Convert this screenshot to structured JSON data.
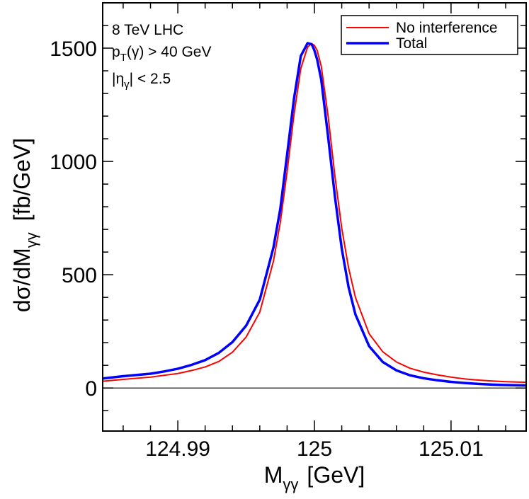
{
  "chart_data": {
    "type": "line",
    "xlabel": {
      "main": "M",
      "sub": "γγ",
      "unit": "[GeV]"
    },
    "ylabel": {
      "prefix": "dσ/dM",
      "sub": "γγ",
      "unit": "[fb/GeV]"
    },
    "xlim": [
      124.9845,
      125.0155
    ],
    "ylim": [
      -190,
      1700
    ],
    "x_ticks": [
      {
        "value": 124.99,
        "label": "124.99"
      },
      {
        "value": 125.0,
        "label": "125"
      },
      {
        "value": 125.01,
        "label": "125.01"
      }
    ],
    "y_ticks": [
      {
        "value": 0,
        "label": "0"
      },
      {
        "value": 500,
        "label": "500"
      },
      {
        "value": 1000,
        "label": "1000"
      },
      {
        "value": 1500,
        "label": "1500"
      }
    ],
    "zero_line": true,
    "annotations": [
      {
        "kind": "plain",
        "text": "8 TeV LHC"
      },
      {
        "kind": "pt",
        "main": "p",
        "sub": "T",
        "rest": "(γ) > 40 GeV"
      },
      {
        "kind": "eta",
        "main": "|η",
        "sub": "γ",
        "rest": "| < 2.5"
      }
    ],
    "legend_position": "top-right",
    "series": [
      {
        "name": "No interference",
        "color": "#ff0000",
        "x": [
          124.9845,
          124.986,
          124.988,
          124.989,
          124.99,
          124.991,
          124.992,
          124.993,
          124.994,
          124.995,
          124.996,
          124.997,
          124.9975,
          124.998,
          124.9985,
          124.999,
          124.9995,
          124.9998,
          125.0,
          125.0002,
          125.0005,
          125.001,
          125.0015,
          125.002,
          125.0025,
          125.003,
          125.004,
          125.005,
          125.006,
          125.007,
          125.008,
          125.009,
          125.01,
          125.011,
          125.012,
          125.013,
          125.014,
          125.0155
        ],
        "y": [
          30,
          38,
          48,
          56,
          64,
          77,
          93,
          117,
          158,
          225,
          335,
          560,
          730,
          955,
          1205,
          1410,
          1505,
          1520,
          1512,
          1490,
          1420,
          1200,
          935,
          705,
          530,
          400,
          240,
          160,
          115,
          87,
          70,
          58,
          48,
          40,
          35,
          31,
          28,
          25
        ]
      },
      {
        "name": "Total",
        "color": "#0000ff",
        "x": [
          124.9845,
          124.986,
          124.988,
          124.989,
          124.99,
          124.991,
          124.992,
          124.993,
          124.994,
          124.995,
          124.996,
          124.997,
          124.9975,
          124.998,
          124.9985,
          124.999,
          124.9995,
          124.9998,
          125.0,
          125.0002,
          125.0005,
          125.001,
          125.0015,
          125.002,
          125.0025,
          125.003,
          125.004,
          125.005,
          125.006,
          125.007,
          125.008,
          125.009,
          125.01,
          125.011,
          125.012,
          125.013,
          125.014,
          125.0155
        ],
        "y": [
          42,
          52,
          63,
          73,
          85,
          102,
          123,
          155,
          203,
          275,
          390,
          620,
          790,
          1030,
          1275,
          1465,
          1522,
          1517,
          1490,
          1450,
          1360,
          1110,
          845,
          615,
          445,
          325,
          185,
          115,
          78,
          56,
          43,
          34,
          27,
          22,
          18,
          15,
          13,
          11
        ]
      }
    ]
  }
}
